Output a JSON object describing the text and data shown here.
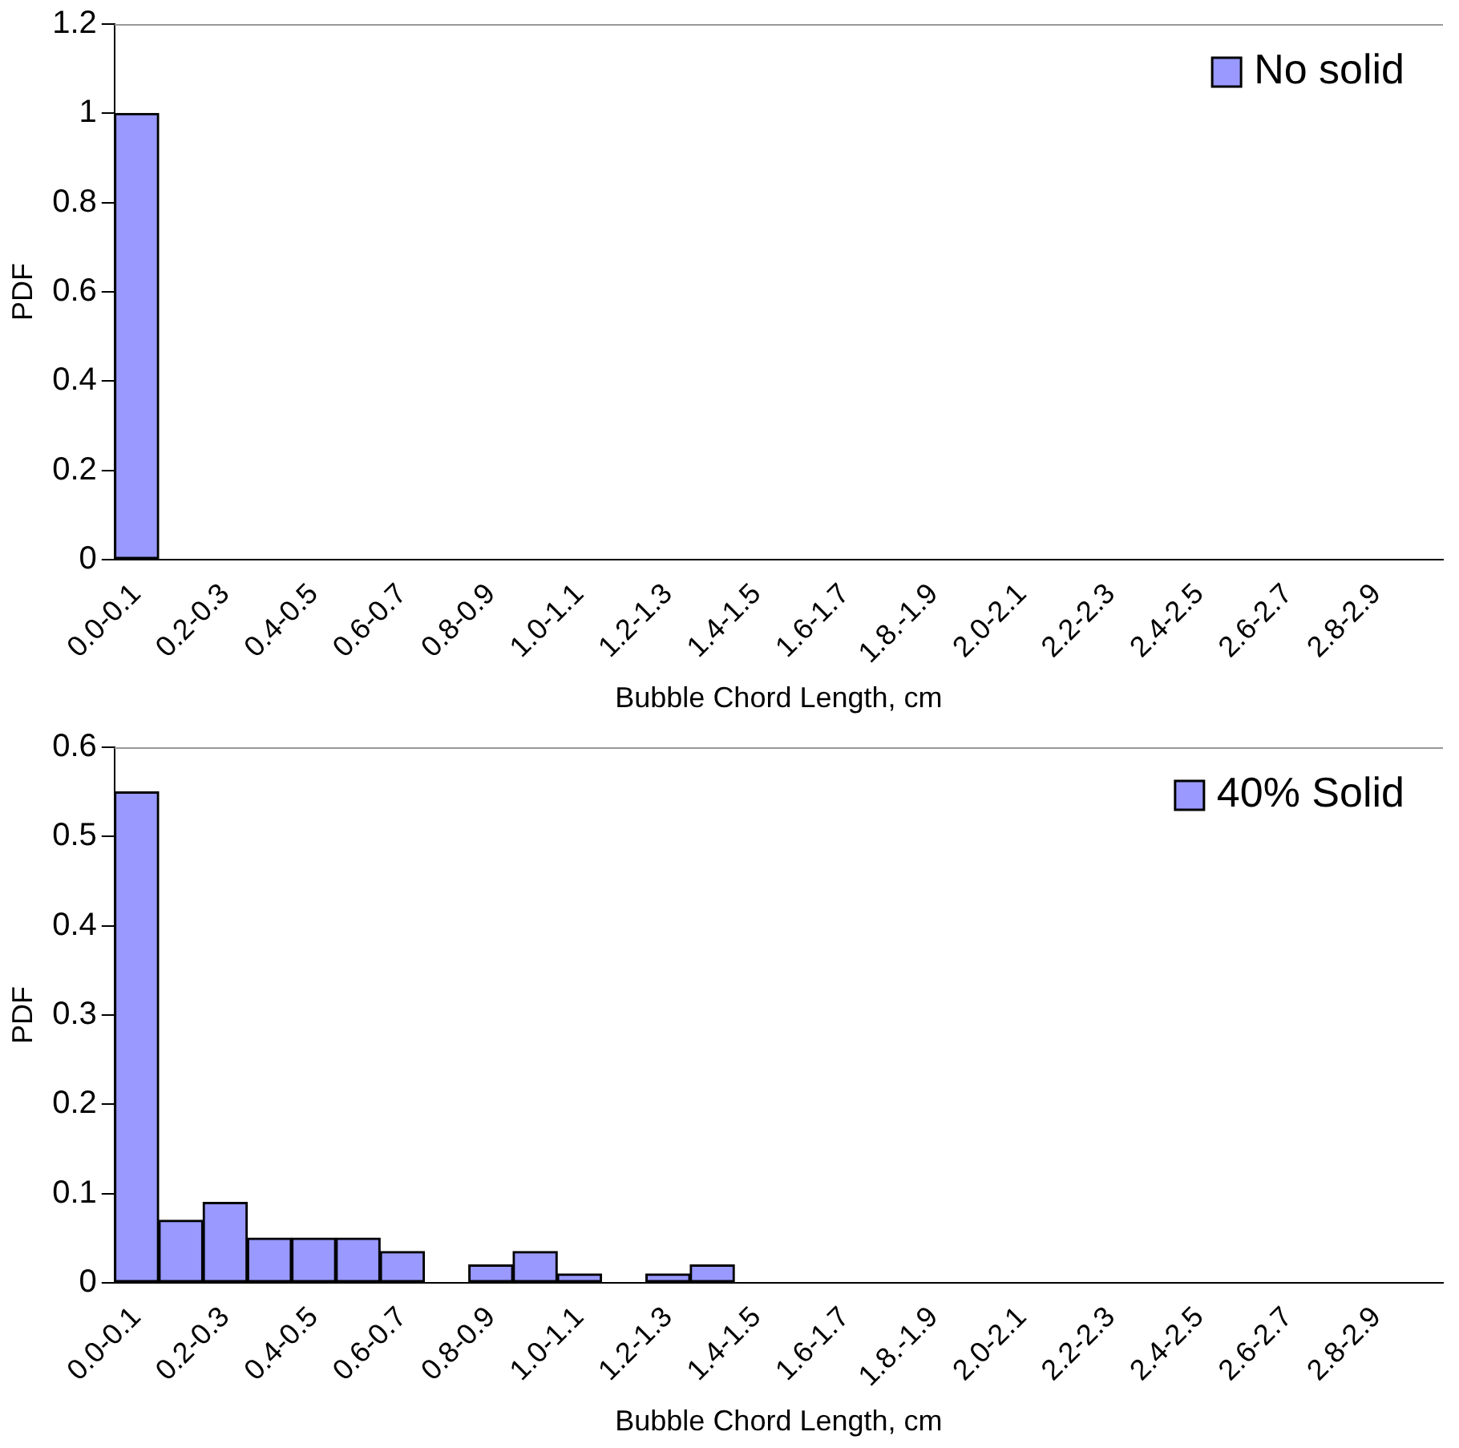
{
  "chart_data": [
    {
      "type": "bar",
      "xlabel": "Bubble Chord Length, cm",
      "ylabel": "PDF",
      "categories": [
        "0.0-0.1",
        null,
        "0.2-0.3",
        null,
        "0.4-0.5",
        null,
        "0.6-0.7",
        null,
        "0.8-0.9",
        null,
        "1.0-1.1",
        null,
        "1.2-1.3",
        null,
        "1.4-1.5",
        null,
        "1.6-1.7",
        null,
        "1.8.-1.9",
        null,
        "2.0-2.1",
        null,
        "2.2-2.3",
        null,
        "2.4-2.5",
        null,
        "2.6-2.7",
        null,
        "2.8-2.9",
        null
      ],
      "series": [
        {
          "name": "No solid",
          "color": "#9999ff",
          "values": [
            1,
            0,
            0,
            0,
            0,
            0,
            0,
            0,
            0,
            0,
            0,
            0,
            0,
            0,
            0,
            0,
            0,
            0,
            0,
            0,
            0,
            0,
            0,
            0,
            0,
            0,
            0,
            0,
            0,
            0
          ]
        }
      ],
      "ylim": [
        0,
        1.2
      ],
      "yticks": [
        0,
        0.2,
        0.4,
        0.6,
        0.8,
        1,
        1.2
      ],
      "legend": "top right"
    },
    {
      "type": "bar",
      "xlabel": "Bubble Chord Length, cm",
      "ylabel": "PDF",
      "categories": [
        "0.0-0.1",
        null,
        "0.2-0.3",
        null,
        "0.4-0.5",
        null,
        "0.6-0.7",
        null,
        "0.8-0.9",
        null,
        "1.0-1.1",
        null,
        "1.2-1.3",
        null,
        "1.4-1.5",
        null,
        "1.6-1.7",
        null,
        "1.8.-1.9",
        null,
        "2.0-2.1",
        null,
        "2.2-2.3",
        null,
        "2.4-2.5",
        null,
        "2.6-2.7",
        null,
        "2.8-2.9",
        null
      ],
      "series": [
        {
          "name": "40% Solid",
          "color": "#9999ff",
          "values": [
            0.55,
            0.07,
            0.09,
            0.05,
            0.05,
            0.05,
            0.035,
            0,
            0.02,
            0.035,
            0.01,
            0,
            0.01,
            0.02,
            0,
            0,
            0,
            0,
            0,
            0,
            0,
            0,
            0,
            0,
            0,
            0,
            0,
            0,
            0,
            0
          ]
        }
      ],
      "ylim": [
        0,
        0.6
      ],
      "yticks": [
        0,
        0.1,
        0.2,
        0.3,
        0.4,
        0.5,
        0.6
      ],
      "legend": "top right"
    }
  ]
}
